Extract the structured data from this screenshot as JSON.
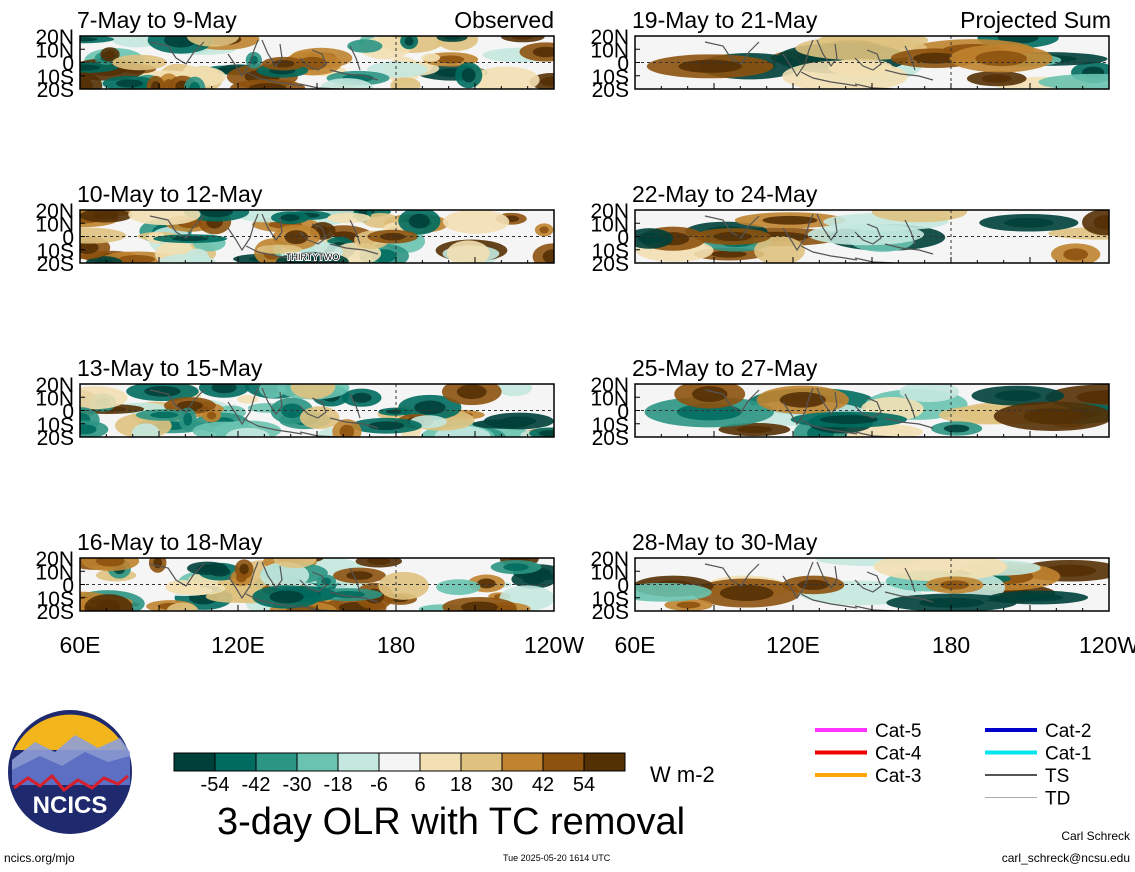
{
  "corner_labels": {
    "observed": "Observed",
    "projected": "Projected Sum"
  },
  "lat_ticks": [
    "20N",
    "10N",
    "0",
    "10S",
    "20S"
  ],
  "lon_ticks": [
    "60E",
    "120E",
    "180",
    "120W"
  ],
  "storm_label": "THIRTYTWO",
  "chart_data": {
    "type": "heatmap",
    "title": "3-day OLR with TC removal",
    "units": "W m-2",
    "colorbar": {
      "ticks": [
        -54,
        -42,
        -30,
        -18,
        -6,
        6,
        18,
        30,
        42,
        54
      ],
      "colors": [
        "#00403a",
        "#006b5f",
        "#2c9583",
        "#69c3b0",
        "#c4e8df",
        "#f5f5f5",
        "#f3e0b2",
        "#dfc27f",
        "#c08430",
        "#8d520e",
        "#543005"
      ]
    },
    "xlim": [
      "60E",
      "120W"
    ],
    "ylim": [
      "20S",
      "20N"
    ],
    "panels": [
      {
        "column": "observed",
        "period": "7-May to 9-May"
      },
      {
        "column": "observed",
        "period": "10-May to 12-May"
      },
      {
        "column": "observed",
        "period": "13-May to 15-May"
      },
      {
        "column": "observed",
        "period": "16-May to 18-May"
      },
      {
        "column": "projected",
        "period": "19-May to 21-May"
      },
      {
        "column": "projected",
        "period": "22-May to 24-May"
      },
      {
        "column": "projected",
        "period": "25-May to 27-May"
      },
      {
        "column": "projected",
        "period": "28-May to 30-May"
      }
    ]
  },
  "legend": {
    "items": [
      {
        "label": "Cat-5",
        "color": "#ff33ff"
      },
      {
        "label": "Cat-4",
        "color": "#ee0000"
      },
      {
        "label": "Cat-3",
        "color": "#ffa500"
      },
      {
        "label": "Cat-2",
        "color": "#0000cc"
      },
      {
        "label": "Cat-1",
        "color": "#00e5ee"
      },
      {
        "label": "TS",
        "color": "#555555"
      },
      {
        "label": "TD",
        "color": "#aaaaaa"
      }
    ]
  },
  "logo": {
    "text": "NCICS"
  },
  "footer": {
    "url": "ncics.org/mjo",
    "timestamp": "Tue 2025-05-20 1614 UTC",
    "author": "Carl Schreck",
    "email": "carl_schreck@ncsu.edu"
  }
}
